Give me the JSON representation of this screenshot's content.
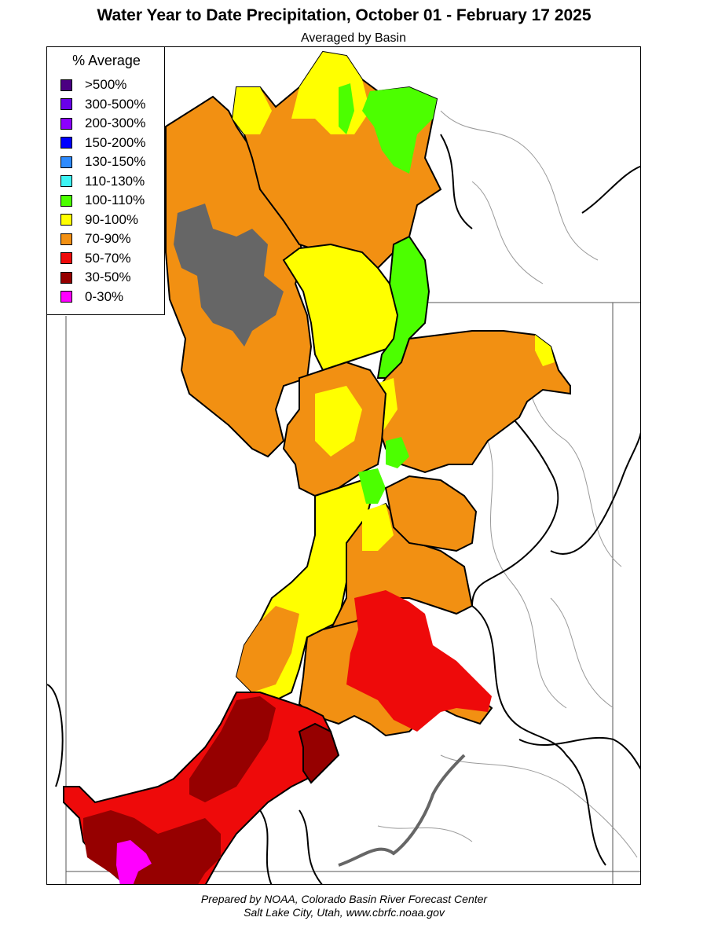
{
  "header": {
    "title": "Water Year to Date Precipitation, October 01  - February 17 2025",
    "subtitle": "Averaged by Basin"
  },
  "legend": {
    "title": "% Average",
    "items": [
      {
        "label": ">500%",
        "color": "#4b0082"
      },
      {
        "label": "300-500%",
        "color": "#6a00e8"
      },
      {
        "label": "200-300%",
        "color": "#8c00ff"
      },
      {
        "label": "150-200%",
        "color": "#0000ff"
      },
      {
        "label": "130-150%",
        "color": "#2e8bff"
      },
      {
        "label": "110-130%",
        "color": "#3ef4f4"
      },
      {
        "label": "100-110%",
        "color": "#4cff00"
      },
      {
        "label": "90-100%",
        "color": "#ffff00"
      },
      {
        "label": "70-90%",
        "color": "#f29012"
      },
      {
        "label": "50-70%",
        "color": "#ee0a0a"
      },
      {
        "label": "30-50%",
        "color": "#960000"
      },
      {
        "label": "0-30%",
        "color": "#ff00ff"
      }
    ]
  },
  "map": {
    "lake_color": "#666666",
    "border_color": "#000000",
    "river_color": "#9a9a9a"
  },
  "footer": {
    "line1": "Prepared by NOAA, Colorado Basin River Forecast Center",
    "line2": "Salt Lake City, Utah, www.cbrfc.noaa.gov"
  }
}
